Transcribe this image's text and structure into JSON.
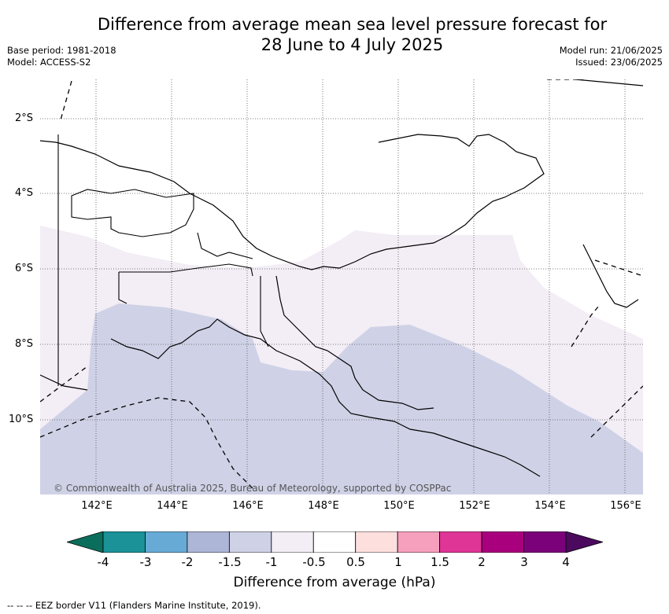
{
  "title": {
    "line1": "Difference from average mean sea level pressure forecast for",
    "line2": "28 June to 4 July 2025"
  },
  "meta": {
    "base_period": "Base period: 1981-2018",
    "model": "Model: ACCESS-S2",
    "model_run": "Model run: 21/06/2025",
    "issued": "Issued: 23/06/2025"
  },
  "map": {
    "copyright": "© Commonwealth of Australia 2025, Bureau of Meteorology, supported by COSPPac",
    "lat_labels": [
      "2°S",
      "4°S",
      "6°S",
      "8°S",
      "10°S"
    ],
    "lon_labels": [
      "142°E",
      "144°E",
      "146°E",
      "148°E",
      "150°E",
      "152°E",
      "154°E",
      "156°E"
    ],
    "shading": [
      {
        "bin": "-1.5 to -1",
        "color": "#cfd2e6"
      },
      {
        "bin": "-1 to -0.5",
        "color": "#f3edf5"
      }
    ]
  },
  "colorbar": {
    "ticks": [
      "-4",
      "-3",
      "-2",
      "-1.5",
      "-1",
      "-0.5",
      "0.5",
      "1",
      "1.5",
      "2",
      "3",
      "4"
    ],
    "under_color": "#0b6e5c",
    "over_color": "#4b0a5e",
    "colors": [
      "#1a9298",
      "#67aad6",
      "#adb6d6",
      "#cfd2e6",
      "#f3edf5",
      "#ffffff",
      "#fde0de",
      "#f6a0bd",
      "#df3596",
      "#a9007e",
      "#7a0179"
    ],
    "label": "Difference from average (hPa)"
  },
  "footnote": "--  --  -- EEZ border V11 (Flanders Marine Institute, 2019)."
}
